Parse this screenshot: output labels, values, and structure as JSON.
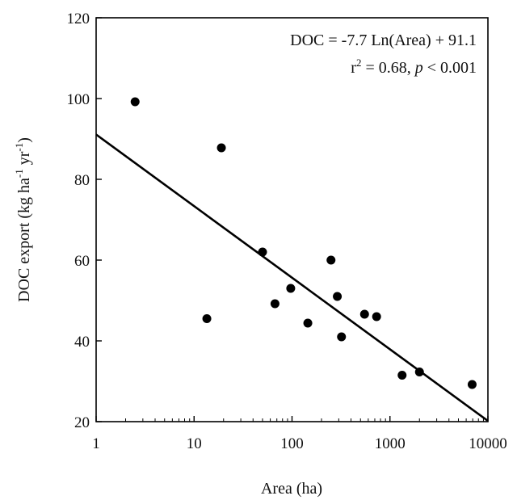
{
  "chart_data": {
    "type": "scatter",
    "title": "",
    "xlabel": "Area (ha)",
    "ylabel_parts": [
      "DOC export (kg ha",
      "-1",
      " yr",
      "-1",
      ")"
    ],
    "x_scale": "log",
    "xlim": [
      1,
      10000
    ],
    "ylim": [
      20,
      120
    ],
    "x_ticks": [
      1,
      10,
      100,
      1000,
      10000
    ],
    "x_tick_labels": [
      "1",
      "10",
      "100",
      "1000",
      "10000"
    ],
    "y_ticks": [
      20,
      40,
      60,
      80,
      100,
      120
    ],
    "y_tick_labels": [
      "20",
      "40",
      "60",
      "80",
      "100",
      "120"
    ],
    "grid": false,
    "legend": "none",
    "marker_color": "#000000",
    "points": [
      {
        "x": 2.5,
        "y": 99.2
      },
      {
        "x": 13.5,
        "y": 45.5
      },
      {
        "x": 19,
        "y": 87.8
      },
      {
        "x": 50,
        "y": 62
      },
      {
        "x": 67,
        "y": 49.2
      },
      {
        "x": 97,
        "y": 53
      },
      {
        "x": 145,
        "y": 44.4
      },
      {
        "x": 250,
        "y": 60
      },
      {
        "x": 290,
        "y": 51
      },
      {
        "x": 320,
        "y": 41
      },
      {
        "x": 550,
        "y": 46.6
      },
      {
        "x": 730,
        "y": 46
      },
      {
        "x": 1330,
        "y": 31.5
      },
      {
        "x": 2000,
        "y": 32.3
      },
      {
        "x": 6900,
        "y": 29.2
      }
    ],
    "trendline": {
      "type": "log",
      "slope": -7.7,
      "intercept": 91.1,
      "equation_text": "DOC = -7.7 Ln(Area) + 91.1",
      "r2_prefix": "r",
      "r2_sup": "2",
      "r2_value": " = 0.68, ",
      "p_symbol": "p",
      "p_value": " < 0.001"
    }
  }
}
